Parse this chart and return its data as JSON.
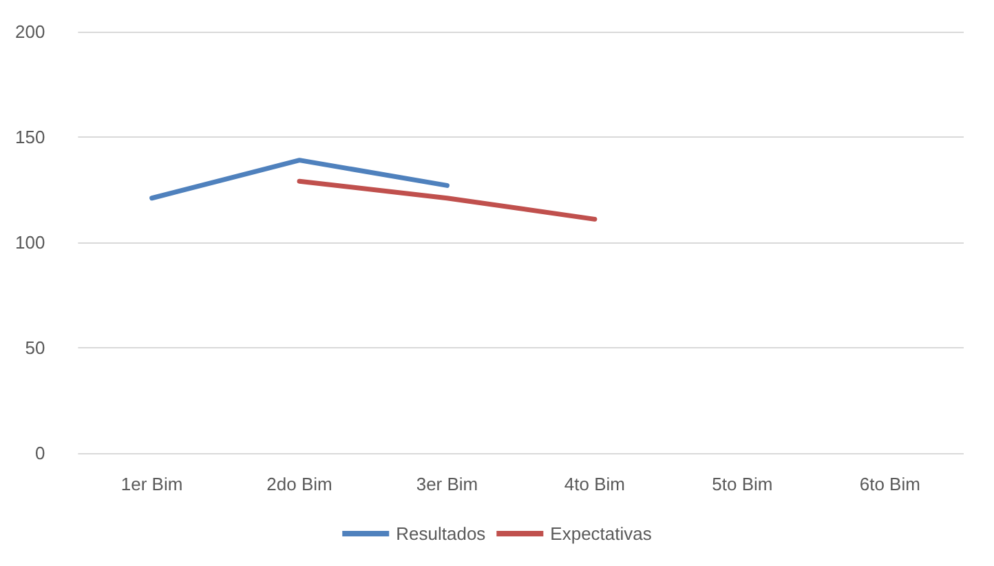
{
  "chart_data": {
    "type": "line",
    "categories": [
      "1er Bim",
      "2do Bim",
      "3er Bim",
      "4to Bim",
      "5to Bim",
      "6to Bim"
    ],
    "series": [
      {
        "name": "Resultados",
        "color": "#4f81bd",
        "values": [
          121,
          139,
          127,
          null,
          null,
          null
        ]
      },
      {
        "name": "Expectativas",
        "color": "#c0504d",
        "values": [
          null,
          129,
          121,
          111,
          null,
          null
        ]
      }
    ],
    "ylim": [
      0,
      200
    ],
    "yticks": [
      0,
      50,
      100,
      150,
      200
    ],
    "grid": "y",
    "legend": "bottom",
    "marker": "none",
    "line_style": "solid"
  }
}
